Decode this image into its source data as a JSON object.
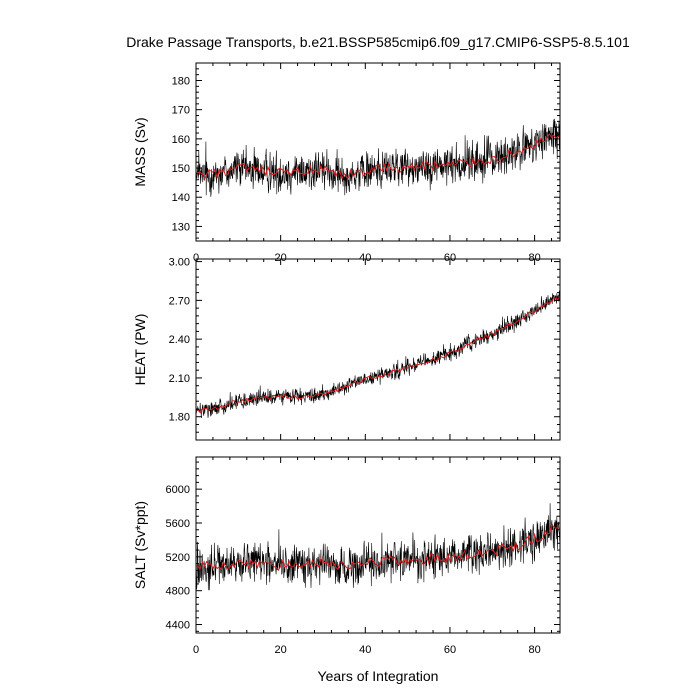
{
  "figure": {
    "title": "Drake Passage Transports, b.e21.BSSP585cmip6.f09_g17.CMIP6-SSP5-8.5.101",
    "xlabel": "Years of Integration"
  },
  "colors": {
    "raw": "#000000",
    "smooth": "#d81e1e",
    "frame": "#000000",
    "background": "#ffffff"
  },
  "chart_data": [
    {
      "type": "line",
      "ylabel": "MASS (Sv)",
      "xlim": [
        0,
        86
      ],
      "ylim": [
        125,
        186
      ],
      "xticks": [
        0,
        20,
        40,
        60,
        80
      ],
      "xticklabels": [
        "0",
        "20",
        "40",
        "60",
        "80"
      ],
      "yticks": [
        130,
        140,
        150,
        160,
        170,
        180
      ],
      "yticklabels": [
        "130",
        "140",
        "150",
        "160",
        "170",
        "180"
      ],
      "x": [
        0,
        5,
        10,
        15,
        20,
        25,
        30,
        35,
        40,
        45,
        50,
        55,
        60,
        65,
        70,
        75,
        80,
        85
      ],
      "series": [
        {
          "role": "raw",
          "values": [
            147,
            148,
            150,
            149,
            148,
            149,
            149,
            147,
            149,
            150,
            150,
            151,
            151,
            152,
            153,
            155,
            158,
            161
          ],
          "noise_amplitude": 10
        },
        {
          "role": "smooth",
          "values": [
            147,
            148,
            150,
            149,
            148,
            149,
            149,
            147,
            149,
            150,
            150,
            151,
            151,
            152,
            153,
            155,
            158,
            161
          ]
        }
      ]
    },
    {
      "type": "line",
      "ylabel": "HEAT (PW)",
      "xlim": [
        0,
        86
      ],
      "ylim": [
        1.62,
        3.02
      ],
      "xticks": [
        0,
        20,
        40,
        60,
        80
      ],
      "xticklabels": [
        "",
        "",
        "",
        "",
        ""
      ],
      "yticks": [
        1.8,
        2.1,
        2.4,
        2.7,
        3.0
      ],
      "yticklabels": [
        "1.80",
        "2.10",
        "2.40",
        "2.70",
        "3.00"
      ],
      "x": [
        0,
        5,
        10,
        15,
        20,
        25,
        30,
        35,
        40,
        45,
        50,
        55,
        60,
        65,
        70,
        75,
        80,
        85
      ],
      "series": [
        {
          "role": "raw",
          "values": [
            1.84,
            1.87,
            1.92,
            1.94,
            1.96,
            1.95,
            1.97,
            2.03,
            2.09,
            2.13,
            2.18,
            2.23,
            2.29,
            2.37,
            2.44,
            2.53,
            2.62,
            2.72
          ],
          "noise_amplitude": 0.09
        },
        {
          "role": "smooth",
          "values": [
            1.84,
            1.87,
            1.92,
            1.94,
            1.96,
            1.95,
            1.97,
            2.03,
            2.09,
            2.13,
            2.18,
            2.23,
            2.29,
            2.37,
            2.44,
            2.53,
            2.62,
            2.72
          ]
        }
      ]
    },
    {
      "type": "line",
      "ylabel": "SALT (Sv*ppt)",
      "xlim": [
        0,
        86
      ],
      "ylim": [
        4300,
        6380
      ],
      "xticks": [
        0,
        20,
        40,
        60,
        80
      ],
      "xticklabels": [
        "0",
        "20",
        "40",
        "60",
        "80"
      ],
      "yticks": [
        4400,
        4800,
        5200,
        5600,
        6000
      ],
      "yticklabels": [
        "4400",
        "4800",
        "5200",
        "5600",
        "6000"
      ],
      "x": [
        0,
        5,
        10,
        15,
        20,
        25,
        30,
        35,
        40,
        45,
        50,
        55,
        60,
        65,
        70,
        75,
        80,
        85
      ],
      "series": [
        {
          "role": "raw",
          "values": [
            5080,
            5100,
            5130,
            5120,
            5100,
            5120,
            5120,
            5090,
            5130,
            5150,
            5160,
            5180,
            5190,
            5220,
            5260,
            5320,
            5420,
            5540
          ],
          "noise_amplitude": 340
        },
        {
          "role": "smooth",
          "values": [
            5080,
            5100,
            5130,
            5120,
            5100,
            5120,
            5120,
            5090,
            5130,
            5150,
            5160,
            5180,
            5190,
            5220,
            5260,
            5320,
            5420,
            5540
          ]
        }
      ]
    }
  ]
}
